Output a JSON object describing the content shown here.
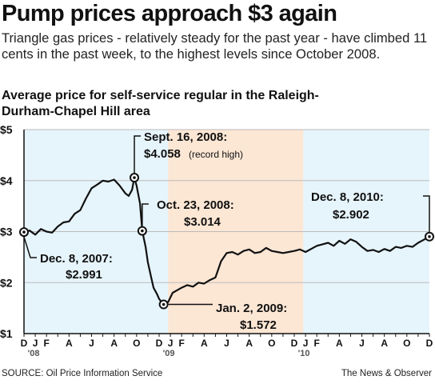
{
  "headline": "Pump prices approach $3 again",
  "dek": "Triangle gas prices - relatively steady for the past year - have climbed 11 cents in the past week, to the highest levels since October 2008.",
  "chart_title": "Average price for self-service regular in the Raleigh-Durham-Chapel Hill area",
  "source": "SOURCE: Oil Price Information Service",
  "credit": "The News & Observer",
  "colors": {
    "line": "#111111",
    "shade_2008": "#e6f4fb",
    "shade_2009": "#fce6d4",
    "shade_2010": "#e6f4fb",
    "grid": "#bbbbbb"
  },
  "chart_data": {
    "type": "line",
    "title": "Average price for self-service regular in the Raleigh-Durham-Chapel Hill area",
    "xlabel": "",
    "ylabel": "",
    "ylim": [
      1,
      5
    ],
    "yticks": [
      "$1",
      "$2",
      "$3",
      "$4",
      "$5"
    ],
    "ytick_values": [
      1,
      2,
      3,
      4,
      5
    ],
    "grid": "horizontal",
    "x_range": [
      "2007-12",
      "2010-12"
    ],
    "month_labels": [
      "D",
      "J",
      "F",
      "A",
      "J",
      "A",
      "O",
      "D",
      "J",
      "F",
      "A",
      "J",
      "A",
      "O",
      "D",
      "J",
      "F",
      "A",
      "J",
      "A",
      "O",
      "D"
    ],
    "month_positions": [
      0,
      1,
      2,
      4,
      6,
      8,
      10,
      12,
      13,
      14,
      16,
      18,
      20,
      22,
      24,
      25,
      26,
      28,
      30,
      32,
      34,
      36
    ],
    "year_labels": [
      {
        "text": "'08",
        "month": 1
      },
      {
        "text": "'09",
        "month": 13
      },
      {
        "text": "'10",
        "month": 25
      }
    ],
    "shaded_periods": [
      {
        "from": 0,
        "to": 12.8,
        "color_key": "shade_2008"
      },
      {
        "from": 12.8,
        "to": 24.8,
        "color_key": "shade_2009"
      },
      {
        "from": 24.8,
        "to": 36,
        "color_key": "shade_2010"
      }
    ],
    "series": [
      {
        "x": [
          0,
          0.5,
          1,
          1.5,
          2,
          2.5,
          3,
          3.5,
          4,
          4.5,
          5,
          5.5,
          6,
          6.5,
          7,
          7.5,
          8,
          8.5,
          9,
          9.3,
          9.6,
          9.8,
          10,
          10.3,
          10.5,
          10.8,
          11,
          11.3,
          11.5,
          11.8,
          12,
          12.4,
          12.8,
          13.2,
          13.6,
          14,
          14.5,
          15,
          15.5,
          16,
          16.5,
          17,
          17.5,
          18,
          18.5,
          19,
          19.5,
          20,
          20.5,
          21,
          21.5,
          22,
          22.5,
          23,
          23.5,
          24,
          24.5,
          25,
          25.5,
          26,
          26.5,
          27,
          27.5,
          28,
          28.5,
          29,
          29.5,
          30,
          30.5,
          31,
          31.5,
          32,
          32.5,
          33,
          33.5,
          34,
          34.5,
          35,
          35.5,
          36
        ],
        "y": [
          2.991,
          3.02,
          2.94,
          3.05,
          3.0,
          2.98,
          3.1,
          3.18,
          3.2,
          3.35,
          3.42,
          3.65,
          3.85,
          3.92,
          4.0,
          3.98,
          4.02,
          3.9,
          3.75,
          3.7,
          3.82,
          4.058,
          3.9,
          3.55,
          3.014,
          2.7,
          2.4,
          2.1,
          1.9,
          1.78,
          1.68,
          1.572,
          1.62,
          1.8,
          1.85,
          1.9,
          1.95,
          1.92,
          2.0,
          1.98,
          2.05,
          2.1,
          2.42,
          2.58,
          2.6,
          2.55,
          2.62,
          2.65,
          2.58,
          2.6,
          2.68,
          2.62,
          2.6,
          2.58,
          2.6,
          2.62,
          2.65,
          2.6,
          2.66,
          2.72,
          2.75,
          2.78,
          2.72,
          2.82,
          2.76,
          2.85,
          2.8,
          2.7,
          2.62,
          2.64,
          2.6,
          2.66,
          2.62,
          2.7,
          2.68,
          2.72,
          2.7,
          2.78,
          2.84,
          2.902
        ]
      }
    ],
    "points": [
      {
        "x": 0,
        "y": 2.991
      },
      {
        "x": 9.8,
        "y": 4.058
      },
      {
        "x": 10.5,
        "y": 3.014
      },
      {
        "x": 12.4,
        "y": 1.572
      },
      {
        "x": 36,
        "y": 2.902
      }
    ],
    "annotations": [
      {
        "date": "Sept. 16, 2008:",
        "value": "$4.058",
        "note": "(record high)"
      },
      {
        "date": "Oct. 23, 2008:",
        "value": "$3.014",
        "note": ""
      },
      {
        "date": "Dec. 8, 2007:",
        "value": "$2.991",
        "note": ""
      },
      {
        "date": "Jan. 2, 2009:",
        "value": "$1.572",
        "note": ""
      },
      {
        "date": "Dec. 8, 2010:",
        "value": "$2.902",
        "note": ""
      }
    ]
  }
}
